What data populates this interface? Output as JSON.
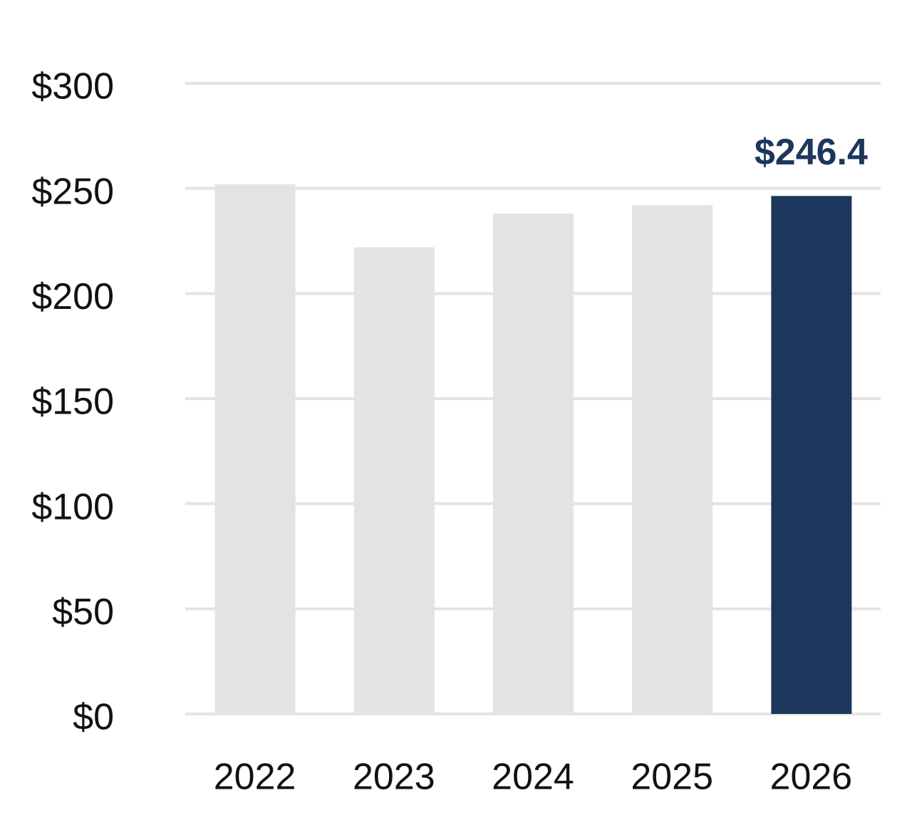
{
  "chart_data": {
    "type": "bar",
    "categories": [
      "2022",
      "2023",
      "2024",
      "2025",
      "2026"
    ],
    "values": [
      252,
      222,
      238,
      242,
      246.4
    ],
    "value_labels": [
      null,
      null,
      null,
      null,
      "$246.4"
    ],
    "colors": [
      "#e3e3e3",
      "#e3e3e3",
      "#e3e3e3",
      "#e3e3e3",
      "#1c365c"
    ],
    "ylim": [
      0,
      300
    ],
    "yticks": [
      {
        "value": 0,
        "label": "$0"
      },
      {
        "value": 50,
        "label": "$50"
      },
      {
        "value": 100,
        "label": "$100"
      },
      {
        "value": 150,
        "label": "$150"
      },
      {
        "value": 200,
        "label": "$200"
      },
      {
        "value": 250,
        "label": "$250"
      },
      {
        "value": 300,
        "label": "$300"
      }
    ],
    "grid": true
  }
}
